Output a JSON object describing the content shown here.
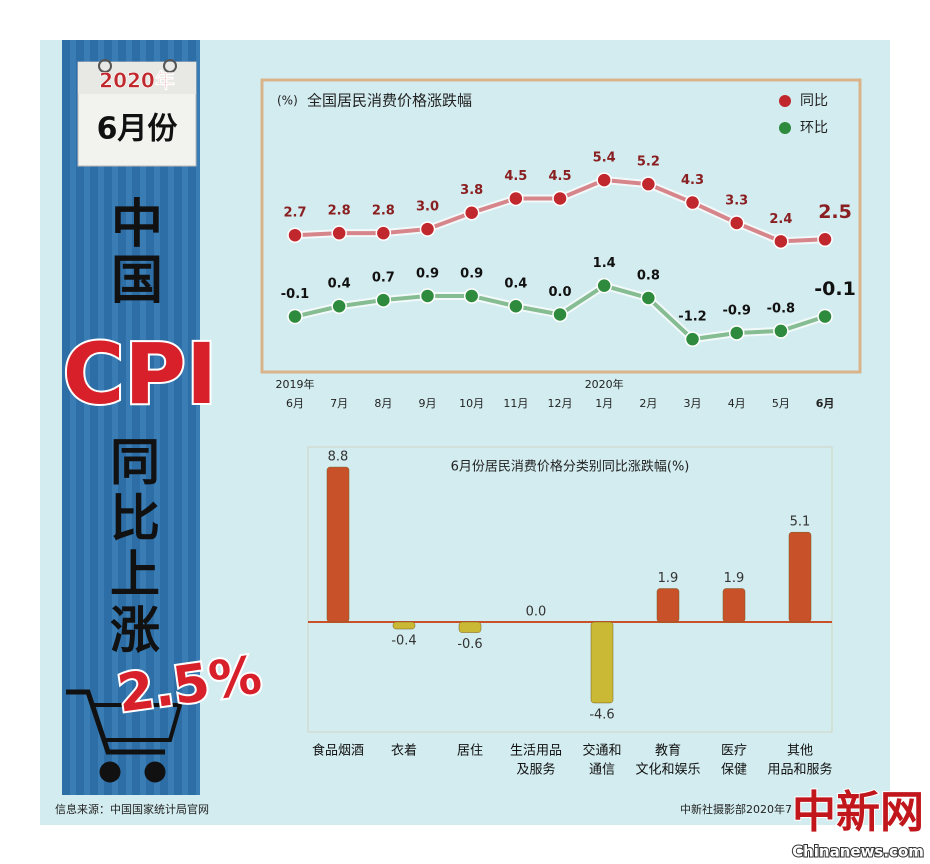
{
  "banner": {
    "year": "2020年",
    "month": "6月份",
    "country": [
      "中",
      "国"
    ],
    "cpi": "CPI",
    "trend": [
      "同",
      "比",
      "上",
      "涨"
    ],
    "rate": "2.5%"
  },
  "footer": {
    "source": "信息来源：中国国家统计局官网",
    "credit": "中新社摄影部2020年7",
    "watermark": "中新网",
    "site": "Chinanews.com"
  },
  "chart_data": [
    {
      "type": "line",
      "title": "全国居民消费价格涨跌幅",
      "unit": "(%)",
      "categories": [
        "6月",
        "7月",
        "8月",
        "9月",
        "10月",
        "11月",
        "12月",
        "1月",
        "2月",
        "3月",
        "4月",
        "5月",
        "6月"
      ],
      "annotations": [
        "2019年",
        "2020年"
      ],
      "series": [
        {
          "name": "同比",
          "color": "#c0282d",
          "values": [
            2.7,
            2.8,
            2.8,
            3.0,
            3.8,
            4.5,
            4.5,
            5.4,
            5.2,
            4.3,
            3.3,
            2.4,
            2.5
          ],
          "value_labels": [
            "2.7",
            "2.8",
            "2.8",
            "3.0",
            "3.8",
            "4.5",
            "4.5",
            "5.4",
            "5.2",
            "4.3",
            "3.3",
            "2.4",
            "2.5"
          ]
        },
        {
          "name": "环比",
          "color": "#2e8a3c",
          "axis": "y2",
          "values": [
            -0.1,
            0.4,
            0.7,
            0.9,
            0.9,
            0.4,
            0.0,
            1.4,
            0.8,
            -1.2,
            -0.9,
            -0.8,
            -0.1
          ],
          "value_labels": [
            "-0.1",
            "0.4",
            "0.7",
            "0.9",
            "0.9",
            "0.4",
            "0.0",
            "1.4",
            "0.8",
            "-1.2",
            "-0.9",
            "-0.8",
            "-0.1"
          ]
        }
      ],
      "ylim": [
        -3.9,
        10.3
      ],
      "y2lim": [
        -2.7,
        11.4
      ],
      "legend": "top-right"
    },
    {
      "type": "bar",
      "title": "6月份居民消费价格分类别同比涨跌幅(%)",
      "categories": [
        [
          "食品烟酒"
        ],
        [
          "衣着"
        ],
        [
          "居住"
        ],
        [
          "生活用品",
          "及服务"
        ],
        [
          "交通和",
          "通信"
        ],
        [
          "教育",
          "文化和娱乐"
        ],
        [
          "医疗",
          "保健"
        ],
        [
          "其他",
          "用品和服务"
        ]
      ],
      "values": [
        8.8,
        -0.4,
        -0.6,
        0.0,
        -4.6,
        1.9,
        1.9,
        5.1
      ],
      "value_labels": [
        "8.8",
        "-0.4",
        "-0.6",
        "0.0",
        "-4.6",
        "1.9",
        "1.9",
        "5.1"
      ],
      "color_positive": "#c8512a",
      "color_negative": "#c9b934",
      "ylim": [
        -6.25,
        9.94
      ]
    }
  ]
}
